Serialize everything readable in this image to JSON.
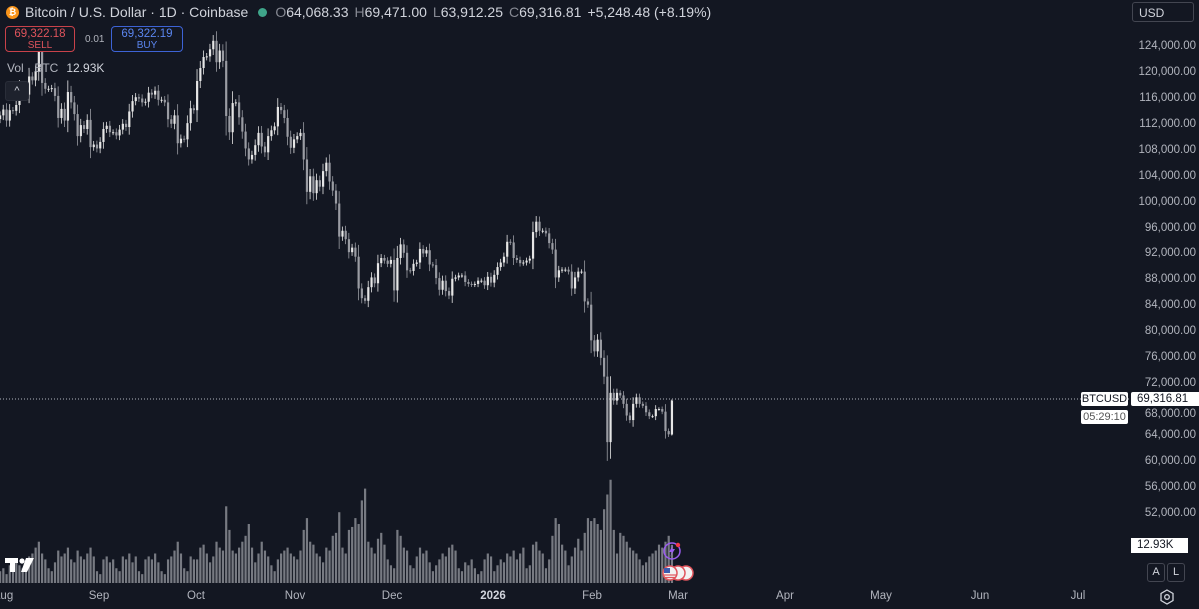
{
  "header": {
    "title": "Bitcoin / U.S. Dollar · 1D · Coinbase",
    "open_label": "O",
    "open": "64,068.33",
    "high_label": "H",
    "high": "69,471.00",
    "low_label": "L",
    "low": "63,912.25",
    "close_label": "C",
    "close": "69,316.81",
    "change": "+5,248.48 (+8.19%)",
    "logo_glyph": "₿"
  },
  "trade": {
    "sell_price": "69,322.18",
    "sell_label": "SELL",
    "spread": "0.01",
    "buy_price": "69,322.19",
    "buy_label": "BUY"
  },
  "volume_legend": {
    "label": "Vol · BTC",
    "value": "12.93K"
  },
  "currency": "USD",
  "price_tag": {
    "symbol": "BTCUSD",
    "price": "69,316.81",
    "countdown": "05:29:10"
  },
  "volume_tag": "12.93K",
  "scale_buttons": {
    "auto": "A",
    "log": "L"
  },
  "colors": {
    "background": "#131722",
    "up": "#e6e6e6",
    "down": "#9a9ca3",
    "volume": "#8a8c93",
    "sell": "#e0545c",
    "buy": "#5b86f0"
  },
  "chart_data": {
    "type": "candlestick",
    "interval": "1D",
    "first_date": "2025-08-01",
    "last_candle": {
      "open": 64068.33,
      "high": 69471.0,
      "low": 63912.25,
      "close": 69316.81
    },
    "closes_k": [
      113.3,
      114.2,
      112.5,
      114.1,
      114.0,
      114.9,
      117.5,
      116.7,
      116.5,
      119.3,
      118.7,
      120.1,
      123.3,
      118.3,
      117.4,
      117.4,
      117.5,
      116.3,
      112.9,
      114.3,
      112.5,
      116.9,
      115.3,
      113.5,
      110.1,
      111.8,
      111.2,
      112.6,
      108.4,
      108.8,
      108.2,
      109.2,
      111.2,
      111.7,
      110.7,
      110.7,
      110.2,
      111.1,
      112.0,
      111.5,
      113.9,
      115.5,
      116.1,
      115.9,
      115.3,
      115.4,
      116.8,
      116.5,
      117.1,
      115.7,
      115.7,
      115.3,
      112.7,
      112.0,
      113.3,
      109.0,
      109.7,
      109.6,
      112.1,
      114.4,
      114.1,
      118.6,
      120.6,
      122.3,
      122.4,
      123.5,
      124.8,
      121.5,
      123.3,
      121.7,
      113.2,
      110.7,
      115.2,
      115.3,
      113.0,
      110.8,
      108.2,
      106.5,
      107.2,
      108.7,
      110.6,
      108.5,
      107.6,
      110.1,
      111.0,
      111.6,
      114.6,
      114.1,
      112.9,
      110.0,
      108.3,
      109.6,
      110.1,
      110.6,
      106.5,
      101.5,
      103.9,
      101.3,
      103.3,
      102.3,
      104.7,
      106.0,
      103.1,
      101.7,
      99.7,
      94.6,
      95.5,
      94.2,
      92.2,
      92.9,
      91.5,
      86.6,
      85.1,
      84.7,
      86.8,
      88.3,
      87.4,
      90.5,
      91.3,
      90.9,
      90.4,
      91.0,
      86.3,
      91.3,
      93.4,
      92.1,
      89.4,
      89.3,
      90.4,
      90.6,
      92.7,
      92.0,
      92.5,
      90.3,
      90.2,
      88.2,
      86.4,
      87.8,
      86.2,
      85.5,
      88.1,
      88.3,
      88.6,
      88.6,
      87.6,
      87.3,
      87.2,
      87.3,
      87.8,
      87.8,
      87.1,
      88.4,
      87.5,
      88.7,
      89.9,
      90.6,
      91.5,
      93.8,
      93.7,
      91.3,
      91.0,
      90.5,
      90.6,
      90.9,
      91.2,
      95.3,
      96.9,
      95.5,
      95.5,
      95.1,
      93.6,
      92.6,
      88.3,
      89.4,
      89.5,
      89.5,
      89.2,
      86.6,
      88.3,
      89.2,
      89.2,
      84.6,
      84.1,
      78.6,
      76.9,
      78.7,
      75.9,
      73.0,
      62.9,
      70.5,
      69.3,
      70.5,
      70.1,
      68.8,
      67.0,
      66.3,
      68.8,
      69.8,
      68.8,
      68.5,
      67.5,
      66.9,
      66.9,
      68.0,
      68.0,
      67.6,
      64.6,
      64.1,
      69.3
    ],
    "volumes_k": [
      4,
      5,
      3,
      6,
      7,
      8,
      6,
      5,
      4,
      9,
      10,
      12,
      14,
      10,
      8,
      5,
      4,
      7,
      11,
      9,
      10,
      12,
      8,
      7,
      11,
      9,
      8,
      10,
      12,
      9,
      4,
      3,
      8,
      9,
      7,
      8,
      5,
      4,
      9,
      8,
      10,
      7,
      9,
      4,
      3,
      8,
      9,
      8,
      10,
      7,
      4,
      3,
      8,
      9,
      11,
      14,
      10,
      5,
      4,
      9,
      8,
      8,
      12,
      13,
      10,
      7,
      9,
      14,
      12,
      11,
      26,
      18,
      11,
      10,
      12,
      14,
      16,
      20,
      12,
      7,
      10,
      14,
      11,
      9,
      6,
      4,
      8,
      10,
      11,
      12,
      10,
      9,
      8,
      11,
      18,
      22,
      14,
      13,
      10,
      9,
      7,
      12,
      11,
      16,
      17,
      24,
      12,
      10,
      18,
      19,
      22,
      20,
      28,
      32,
      14,
      12,
      10,
      15,
      17,
      13,
      8,
      6,
      5,
      18,
      16,
      12,
      11,
      6,
      5,
      9,
      12,
      10,
      11,
      7,
      4,
      6,
      8,
      10,
      9,
      12,
      13,
      11,
      5,
      4,
      7,
      6,
      8,
      5,
      3,
      4,
      8,
      10,
      9,
      4,
      6,
      8,
      7,
      10,
      9,
      11,
      8,
      10,
      12,
      5,
      6,
      13,
      14,
      11,
      10,
      5,
      8,
      16,
      22,
      20,
      13,
      11,
      6,
      9,
      12,
      15,
      11,
      17,
      22,
      21,
      22,
      20,
      18,
      25,
      30,
      35,
      18,
      10,
      17,
      16,
      14,
      12,
      11,
      10,
      8,
      6,
      7,
      9,
      10,
      11,
      13,
      12,
      14,
      16,
      12.93
    ],
    "price_ticks": [
      "124,000.00",
      "120,000.00",
      "116,000.00",
      "112,000.00",
      "108,000.00",
      "104,000.00",
      "100,000.00",
      "96,000.00",
      "92,000.00",
      "88,000.00",
      "84,000.00",
      "80,000.00",
      "76,000.00",
      "72,000.00",
      "68,000.00",
      "64,000.00",
      "60,000.00",
      "56,000.00",
      "52,000.00"
    ],
    "time_ticks": [
      "Aug",
      "Sep",
      "Oct",
      "Nov",
      "Dec",
      "2026",
      "Feb",
      "Mar",
      "Apr",
      "May",
      "Jun",
      "Jul"
    ],
    "ylim": [
      48000,
      128000
    ]
  }
}
